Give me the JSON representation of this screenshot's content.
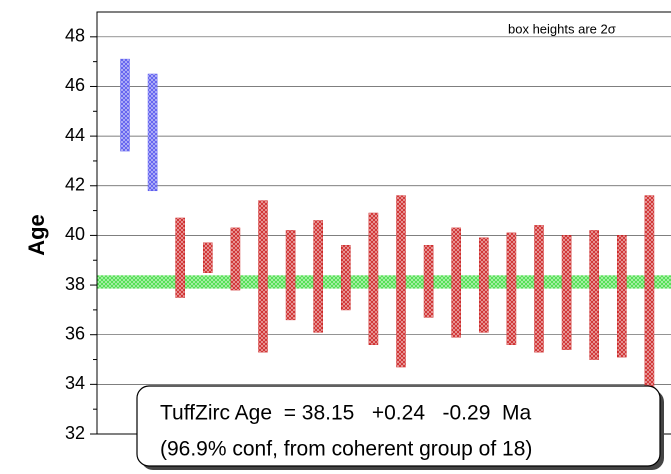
{
  "chart_data": {
    "type": "errorbox",
    "y_label": "Age",
    "annotation": "box heights are 2σ",
    "result_lines": [
      "TuffZirc Age  = 38.15   +0.24   -0.29  Ma",
      "(96.9% conf, from coherent group of 18)"
    ],
    "values": [
      45.25,
      44.15,
      39.1,
      39.1,
      39.05,
      38.35,
      38.4,
      38.35,
      38.3,
      38.25,
      38.15,
      38.15,
      38.1,
      38.0,
      37.85,
      37.85,
      37.7,
      37.6,
      37.55,
      37.55
    ],
    "errors": [
      1.85,
      2.35,
      1.6,
      0.6,
      1.25,
      3.05,
      1.8,
      2.25,
      1.3,
      2.65,
      3.45,
      1.45,
      2.2,
      1.9,
      2.25,
      2.55,
      2.3,
      2.6,
      2.45,
      4.05
    ],
    "colors": [
      "#5555ee",
      "#5555ee",
      "#cc2222",
      "#cc2222",
      "#cc2222",
      "#cc2222",
      "#cc2222",
      "#cc2222",
      "#cc2222",
      "#cc2222",
      "#cc2222",
      "#cc2222",
      "#cc2222",
      "#cc2222",
      "#cc2222",
      "#cc2222",
      "#cc2222",
      "#cc2222",
      "#cc2222",
      "#cc2222"
    ],
    "mean": 38.15,
    "err_plus": 0.24,
    "err_minus": 0.29,
    "mean_color": "#44dd44",
    "ylim": [
      32,
      49
    ],
    "yticks": [
      32,
      34,
      36,
      38,
      40,
      42,
      44,
      46,
      48
    ],
    "yminor_ticks": [
      33,
      35,
      37,
      39,
      41,
      43,
      45,
      47
    ],
    "grid": true
  }
}
